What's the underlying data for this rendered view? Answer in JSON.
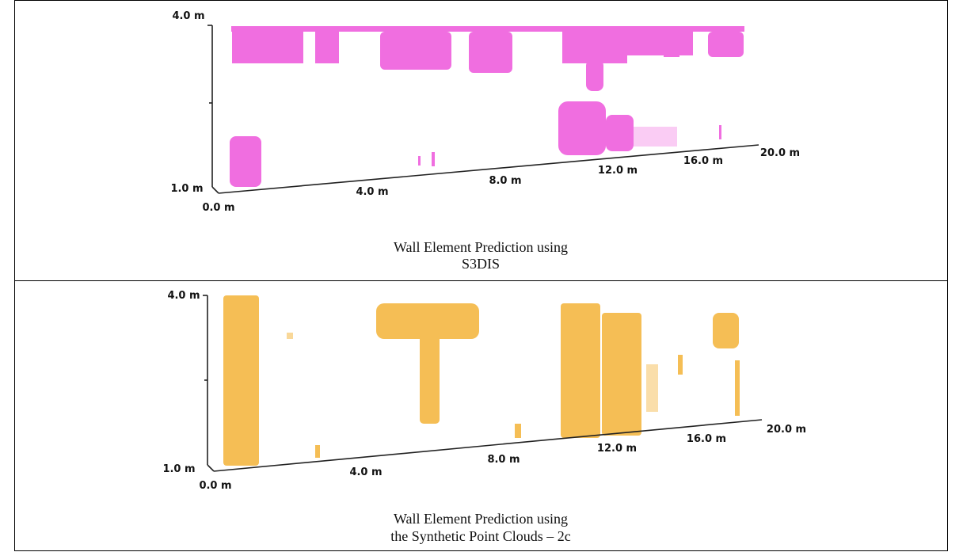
{
  "panels": [
    {
      "axis_labels": {
        "z_top": "4.0 m",
        "z_bottom": "1.0 m",
        "origin": "0.0 m",
        "x": [
          "4.0 m",
          "8.0 m",
          "12.0 m",
          "16.0 m",
          "20.0 m"
        ]
      },
      "caption": [
        "Wall Element Prediction using",
        "S3DIS"
      ]
    },
    {
      "axis_labels": {
        "z_top": "4.0 m",
        "z_bottom": "1.0 m",
        "origin": "0.0 m",
        "x": [
          "4.0 m",
          "8.0 m",
          "12.0 m",
          "16.0 m",
          "20.0 m"
        ]
      },
      "caption": [
        "Wall Element Prediction using",
        "the Synthetic Point Clouds – 2c"
      ]
    }
  ]
}
